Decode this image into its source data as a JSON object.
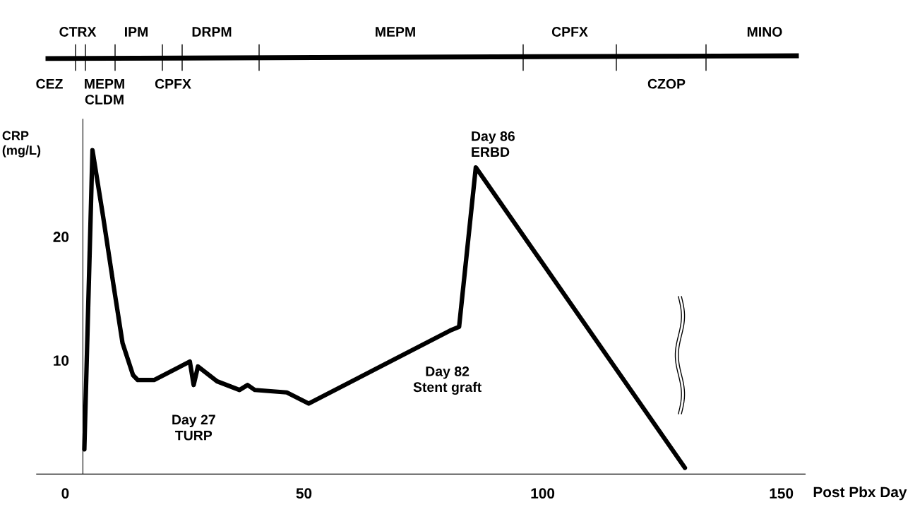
{
  "chart_data": [
    {
      "type": "other",
      "annotations": [
        "CTRX",
        "IPM",
        "DRPM",
        "MEPM",
        "CPFX",
        "MINO",
        "CEZ",
        "MEPM\nCLDM",
        "CPFX",
        "CZOP"
      ]
    },
    {
      "type": "line",
      "xlabel": "Post Pbx Day",
      "ylabel": "CRP\n(mg/L)",
      "x": [
        4.0,
        5.7,
        7.9,
        10.1,
        12.0,
        14.2,
        15.2,
        18.6,
        26.1,
        26.9,
        27.8,
        31.8,
        36.5,
        38.2,
        39.7,
        46.4,
        51.0,
        80.6,
        82.5,
        86.0,
        129.8
      ],
      "values": [
        2.8,
        27.0,
        21.7,
        16.1,
        11.4,
        8.8,
        8.4,
        8.4,
        9.9,
        8.0,
        9.5,
        8.3,
        7.6,
        8.0,
        7.6,
        7.4,
        6.5,
        12.4,
        12.7,
        25.6,
        1.3
      ],
      "color": "#000000",
      "marker": "none",
      "line_style": "solid",
      "grid": false,
      "xlim": [
        -6,
        155
      ],
      "xticks": [
        0,
        50,
        100,
        150
      ],
      "ylim": [
        0.8,
        29.5
      ],
      "yticks": [
        10,
        20
      ],
      "annotations": [
        {
          "text": "Day 27\nTURP",
          "x": 26.9,
          "y": 8.0
        },
        {
          "text": "Day 82\nStent graft",
          "x": 82.5,
          "y": 12.7
        },
        {
          "text": "Day 86\nERBD",
          "x": 86.0,
          "y": 25.6
        }
      ]
    }
  ]
}
